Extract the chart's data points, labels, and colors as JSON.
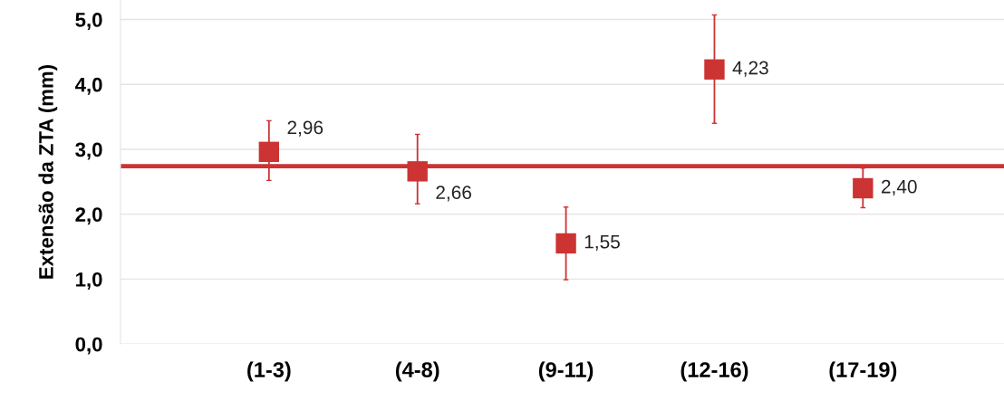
{
  "chart_data": {
    "type": "scatter",
    "ylabel": "Extensão da ZTA (mm)",
    "categories": [
      "(1-3)",
      "(4-8)",
      "(9-11)",
      "(12-16)",
      "(17-19)"
    ],
    "values": [
      2.96,
      2.66,
      1.55,
      4.23,
      2.4
    ],
    "errors": [
      [
        2.52,
        3.44
      ],
      [
        2.16,
        3.23
      ],
      [
        0.99,
        2.11
      ],
      [
        3.4,
        5.07
      ],
      [
        2.1,
        2.71
      ]
    ],
    "value_labels": [
      "2,96",
      "2,66",
      "1,55",
      "4,23",
      "2,40"
    ],
    "color": "#cc3333",
    "marker": "square",
    "ylim": [
      0,
      5.3
    ],
    "yticks": [
      {
        "value": 0,
        "label": "0,0"
      },
      {
        "value": 1,
        "label": "1,0"
      },
      {
        "value": 2,
        "label": "2,0"
      },
      {
        "value": 3,
        "label": "3,0"
      },
      {
        "value": 4,
        "label": "4,0"
      },
      {
        "value": 5,
        "label": "5,0"
      }
    ],
    "ref_lines": [
      {
        "axis": "y",
        "value": 2.74,
        "color": "#cc3333",
        "line_style": "solid"
      }
    ],
    "grid": "y"
  }
}
